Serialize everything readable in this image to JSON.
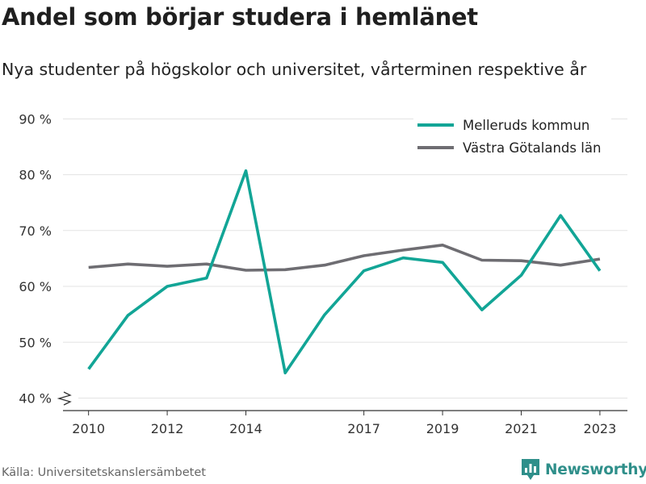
{
  "header": {
    "title": "Andel som börjar studera i hemlänet",
    "subtitle": "Nya studenter på högskolor och universitet, vårterminen respektive år"
  },
  "footer": {
    "source": "Källa: Universitetskanslersämbetet",
    "brand": "Newsworthy",
    "brand_icon": "bar-chart-logo-icon",
    "brand_color": "#2f8f8a"
  },
  "chart_data": {
    "type": "line",
    "title": "Andel som börjar studera i hemlänet",
    "subtitle": "Nya studenter på högskolor och universitet, vårterminen respektive år",
    "xlabel": "",
    "ylabel": "",
    "ylim": [
      40,
      90
    ],
    "y_ticks": [
      40,
      50,
      60,
      70,
      80,
      90
    ],
    "y_tick_labels": [
      "40 %",
      "50 %",
      "60 %",
      "70 %",
      "80 %",
      "90 %"
    ],
    "y_axis_break": true,
    "grid": "horizontal",
    "legend_position": "top-right",
    "x_ticks": [
      2010,
      2012,
      2014,
      2017,
      2019,
      2021,
      2023
    ],
    "x_tick_labels": [
      "2010",
      "2012",
      "2014",
      "2017",
      "2019",
      "2021",
      "2023"
    ],
    "x": [
      2010,
      2011,
      2012,
      2013,
      2014,
      2015,
      2016,
      2017,
      2018,
      2019,
      2020,
      2021,
      2022,
      2023
    ],
    "series": [
      {
        "name": "Melleruds kommun",
        "color": "#12a596",
        "values": [
          45.2,
          54.8,
          60.0,
          61.5,
          80.7,
          44.5,
          54.9,
          62.8,
          65.1,
          64.3,
          55.8,
          62.0,
          72.7,
          62.8
        ]
      },
      {
        "name": "Västra Götalands län",
        "color": "#6e6d72",
        "values": [
          63.4,
          64.0,
          63.6,
          64.0,
          62.9,
          63.0,
          63.8,
          65.5,
          66.5,
          67.4,
          64.7,
          64.6,
          63.8,
          64.9
        ]
      }
    ]
  }
}
